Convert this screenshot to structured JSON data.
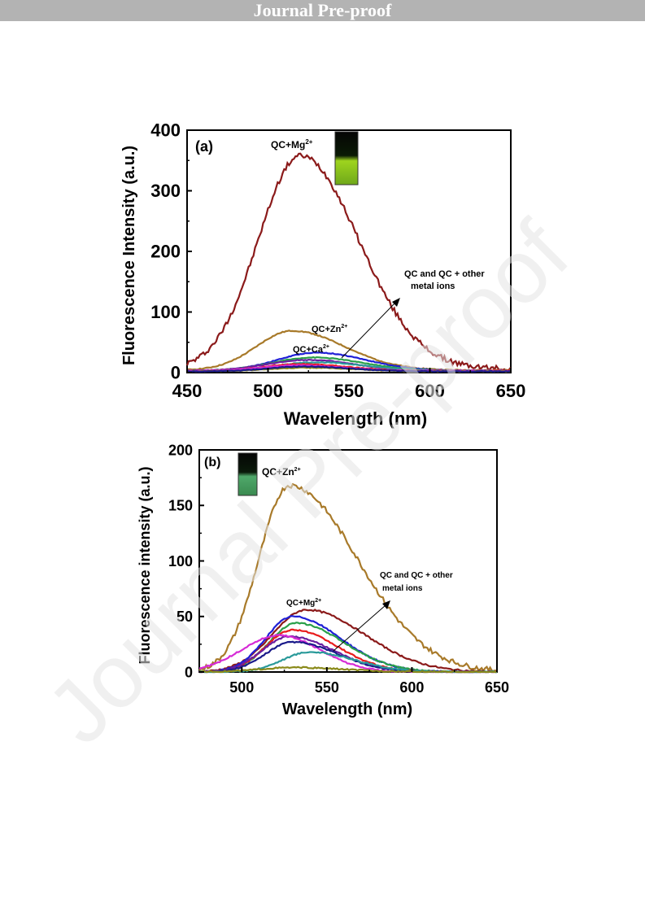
{
  "banner": {
    "text": "Journal Pre-proof"
  },
  "watermark": {
    "text": "Journal Pre-proof",
    "color": "#e4e4e4"
  },
  "colors": {
    "mg": "#8b1a1a",
    "zn": "#a87a2a",
    "ca": "#1f1fd6",
    "purple": "#6a1fa0",
    "green": "#2aa04a",
    "teal": "#2a9a9a",
    "magenta": "#d62ad6",
    "red": "#e81c1c",
    "olive": "#8a8a1a",
    "navy": "#1a1a8a"
  },
  "chart_data": [
    {
      "type": "line",
      "panel_label": "(a)",
      "xlabel": "Wavelength (nm)",
      "ylabel": "Fluorescence Intensity (a.u.)",
      "xlim": [
        450,
        650
      ],
      "ylim": [
        0,
        400
      ],
      "xticks": [
        "450",
        "500",
        "550",
        "600",
        "650"
      ],
      "yticks": [
        "0",
        "100",
        "200",
        "300",
        "400"
      ],
      "annotations": {
        "mg": {
          "base": "QC+Mg",
          "sup": "2+"
        },
        "zn": {
          "base": "QC+Zn",
          "sup": "2+"
        },
        "ca": {
          "base": "QC+Ca",
          "sup": "2+"
        },
        "others_line1": "QC and QC + other",
        "others_line2": "metal ions"
      },
      "series": [
        {
          "key": "mg",
          "color": "#8b1a1a",
          "peak": 520,
          "height": 352,
          "sigma_left": 26,
          "sigma_right": 36,
          "baseline": 6
        },
        {
          "key": "zn",
          "color": "#a87a2a",
          "peak": 515,
          "height": 65,
          "sigma_left": 22,
          "sigma_right": 32,
          "baseline": 4
        },
        {
          "key": "ca",
          "color": "#1f1fd6",
          "peak": 530,
          "height": 30,
          "sigma_left": 24,
          "sigma_right": 30,
          "baseline": 3
        },
        {
          "color": "#2aa04a",
          "peak": 528,
          "height": 22,
          "sigma_left": 25,
          "sigma_right": 30,
          "baseline": 3
        },
        {
          "color": "#6a1fa0",
          "peak": 525,
          "height": 18,
          "sigma_left": 25,
          "sigma_right": 28,
          "baseline": 3
        },
        {
          "color": "#2a9a9a",
          "peak": 530,
          "height": 14,
          "sigma_left": 25,
          "sigma_right": 30,
          "baseline": 3
        },
        {
          "color": "#e81c1c",
          "peak": 520,
          "height": 11,
          "sigma_left": 22,
          "sigma_right": 28,
          "baseline": 3
        },
        {
          "color": "#d62ad6",
          "peak": 518,
          "height": 9,
          "sigma_left": 22,
          "sigma_right": 28,
          "baseline": 3
        },
        {
          "color": "#8a8a1a",
          "peak": 525,
          "height": 6,
          "sigma_left": 25,
          "sigma_right": 28,
          "baseline": 2
        },
        {
          "color": "#1a1a8a",
          "peak": 522,
          "height": 8,
          "sigma_left": 22,
          "sigma_right": 28,
          "baseline": 2
        }
      ]
    },
    {
      "type": "line",
      "panel_label": "(b)",
      "xlabel": "Wavelength (nm)",
      "ylabel": "Fluorescence intensity (a.u.)",
      "xlim": [
        475,
        650
      ],
      "ylim": [
        0,
        200
      ],
      "xticks": [
        "500",
        "550",
        "600",
        "650"
      ],
      "yticks": [
        "0",
        "50",
        "100",
        "150",
        "200"
      ],
      "annotations": {
        "zn": {
          "base": "QC+Zn",
          "sup": "2+"
        },
        "mg": {
          "base": "QC+Mg",
          "sup": "2+"
        },
        "others_line1": "QC and QC + other",
        "others_line2": "metal ions"
      },
      "series": [
        {
          "key": "zn",
          "color": "#a87a2a",
          "peak": 528,
          "height": 168,
          "sigma_left": 18,
          "sigma_right": 40,
          "baseline": 0
        },
        {
          "key": "mg",
          "color": "#8b1a1a",
          "peak": 538,
          "height": 56,
          "sigma_left": 20,
          "sigma_right": 34,
          "baseline": 0
        },
        {
          "color": "#1f1fd6",
          "peak": 530,
          "height": 50,
          "sigma_left": 16,
          "sigma_right": 28,
          "baseline": 0
        },
        {
          "color": "#2aa04a",
          "peak": 532,
          "height": 44,
          "sigma_left": 16,
          "sigma_right": 28,
          "baseline": 0
        },
        {
          "color": "#e81c1c",
          "peak": 530,
          "height": 38,
          "sigma_left": 16,
          "sigma_right": 26,
          "baseline": 0
        },
        {
          "color": "#6a1fa0",
          "peak": 528,
          "height": 32,
          "sigma_left": 16,
          "sigma_right": 26,
          "baseline": 0
        },
        {
          "color": "#d62ad6",
          "peak": 522,
          "height": 33,
          "sigma_left": 22,
          "sigma_right": 24,
          "baseline": 0
        },
        {
          "color": "#1a1a8a",
          "peak": 530,
          "height": 27,
          "sigma_left": 16,
          "sigma_right": 26,
          "baseline": 0
        },
        {
          "color": "#2a9a9a",
          "peak": 540,
          "height": 18,
          "sigma_left": 16,
          "sigma_right": 26,
          "baseline": 0
        },
        {
          "color": "#8a8a1a",
          "peak": 530,
          "height": 4,
          "sigma_left": 20,
          "sigma_right": 30,
          "baseline": 0
        }
      ]
    }
  ]
}
